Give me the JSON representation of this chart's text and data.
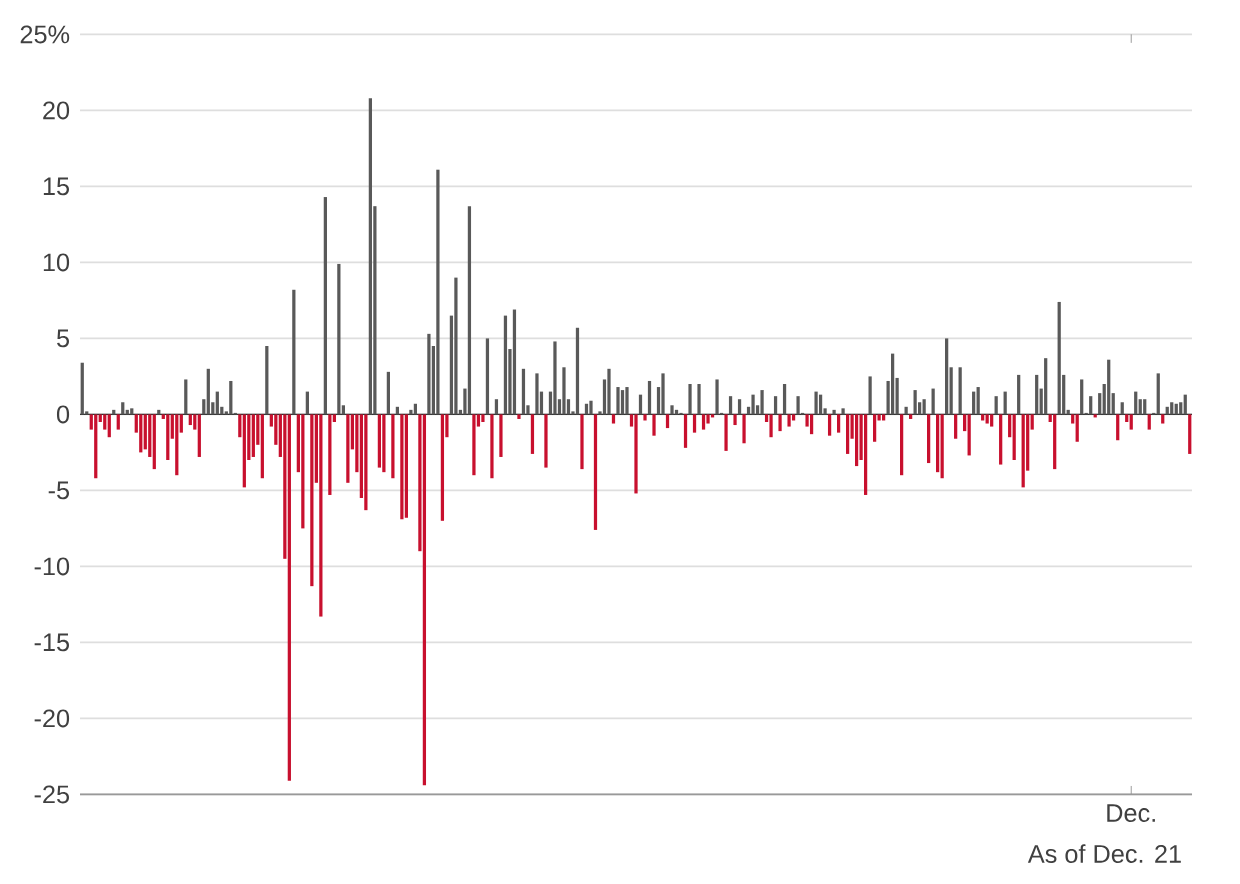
{
  "chart_data": {
    "type": "bar",
    "categories": [
      null,
      null,
      null,
      null,
      null,
      null,
      null,
      null,
      null,
      null,
      null,
      null,
      null,
      null,
      null,
      null,
      null,
      null,
      null,
      null,
      null,
      null,
      null,
      null,
      null,
      null,
      null,
      null,
      null,
      null,
      null,
      null,
      null,
      null,
      null,
      null,
      null,
      null,
      null,
      null,
      null,
      null,
      null,
      null,
      null,
      null,
      null,
      null,
      null,
      null,
      null,
      null,
      null,
      null,
      null,
      null,
      null,
      null,
      null,
      null,
      null,
      null,
      null,
      null,
      null,
      null,
      null,
      null,
      null,
      null,
      null,
      null,
      null,
      null,
      null,
      null,
      null,
      null,
      null,
      null,
      null,
      null,
      null,
      null,
      null,
      null,
      null,
      null,
      null,
      null,
      null,
      null,
      null,
      null,
      null,
      null,
      null,
      null,
      null,
      null,
      null,
      null,
      null,
      null,
      null,
      null,
      null,
      null,
      null,
      null,
      null,
      null,
      null,
      null,
      null,
      null,
      null,
      null,
      null,
      null,
      null,
      null,
      null,
      null,
      null,
      null,
      null,
      null,
      null,
      null,
      null,
      null,
      null,
      null,
      null,
      null,
      null,
      null,
      null,
      null,
      null,
      null,
      null,
      null,
      null,
      null,
      null,
      null,
      null,
      null,
      null,
      null,
      null,
      null,
      null,
      null,
      null,
      null,
      null,
      null,
      null,
      null,
      null,
      null,
      null,
      null,
      null,
      null,
      null,
      null,
      null,
      null,
      null,
      null,
      null,
      null,
      null,
      null,
      null,
      null,
      null,
      null,
      null,
      null,
      null,
      null,
      null,
      null,
      null,
      null,
      null,
      null,
      null,
      null,
      null,
      null,
      null,
      null,
      null,
      null,
      null,
      null,
      null,
      null,
      null,
      null,
      null,
      null,
      null,
      null,
      null,
      null,
      null,
      null,
      null,
      null,
      null,
      null,
      null,
      null,
      null,
      null,
      null,
      null,
      null,
      null,
      null,
      null,
      null,
      null,
      null,
      null,
      null,
      "Dec.",
      null,
      null,
      null,
      null,
      null,
      null,
      null,
      null,
      null,
      null,
      null,
      null,
      null
    ],
    "values": [
      3.4,
      0.2,
      -1.0,
      -4.2,
      -0.5,
      -1.0,
      -1.5,
      0.3,
      -1.0,
      0.8,
      0.3,
      0.4,
      -1.2,
      -2.5,
      -2.3,
      -2.8,
      -3.6,
      0.3,
      -0.3,
      -3.0,
      -1.6,
      -4.0,
      -1.2,
      2.3,
      -0.7,
      -1.0,
      -2.8,
      1.0,
      3.0,
      0.8,
      1.5,
      0.5,
      0.2,
      2.2,
      0.1,
      -1.5,
      -4.8,
      -3.0,
      -2.8,
      -2.0,
      -4.2,
      4.5,
      -0.8,
      -2.0,
      -2.8,
      -9.5,
      -24.1,
      8.2,
      -3.8,
      -7.5,
      1.5,
      -11.3,
      -4.5,
      -13.3,
      14.3,
      -5.3,
      -0.5,
      9.9,
      0.6,
      -4.5,
      -2.3,
      -3.8,
      -5.5,
      -6.3,
      20.8,
      13.7,
      -3.5,
      -3.8,
      2.8,
      -4.2,
      0.5,
      -6.9,
      -6.8,
      0.3,
      0.7,
      -9.0,
      -24.4,
      5.3,
      4.5,
      16.1,
      -7.0,
      -1.5,
      6.5,
      9.0,
      0.3,
      1.7,
      13.7,
      -4.0,
      -0.8,
      -0.5,
      5.0,
      -4.2,
      1.0,
      -2.8,
      6.5,
      4.3,
      6.9,
      -0.3,
      3.0,
      0.6,
      -2.6,
      2.7,
      1.5,
      -3.5,
      1.5,
      4.8,
      1.0,
      3.1,
      1.0,
      0.2,
      5.7,
      -3.6,
      0.7,
      0.9,
      -7.6,
      0.2,
      2.3,
      3.0,
      -0.6,
      1.8,
      1.6,
      1.8,
      -0.8,
      -5.2,
      1.3,
      -0.4,
      2.2,
      -1.4,
      1.8,
      2.7,
      -0.9,
      0.6,
      0.3,
      0.1,
      -2.2,
      2.0,
      -1.2,
      2.0,
      -1.0,
      -0.6,
      -0.2,
      2.3,
      0.1,
      -2.4,
      1.2,
      -0.7,
      1.0,
      -1.9,
      0.5,
      1.3,
      0.6,
      1.6,
      -0.5,
      -1.5,
      1.2,
      -1.1,
      2.0,
      -0.8,
      -0.4,
      1.2,
      0.1,
      -0.8,
      -1.3,
      1.5,
      1.3,
      0.4,
      -1.4,
      0.3,
      -1.2,
      0.4,
      -2.6,
      -1.6,
      -3.4,
      -3.0,
      -5.3,
      2.5,
      -1.8,
      -0.4,
      -0.4,
      2.2,
      4.0,
      2.4,
      -4.0,
      0.5,
      -0.3,
      1.6,
      0.8,
      1.0,
      -3.2,
      1.7,
      -3.8,
      -4.2,
      5.0,
      3.1,
      -1.6,
      3.1,
      -1.1,
      -2.7,
      1.5,
      1.8,
      -0.4,
      -0.6,
      -0.8,
      1.2,
      -3.3,
      1.5,
      -1.5,
      -3.0,
      2.6,
      -4.8,
      -3.7,
      -1.0,
      2.6,
      1.7,
      3.7,
      -0.5,
      -3.6,
      7.4,
      2.6,
      0.3,
      -0.6,
      -1.8,
      2.3,
      0.1,
      1.2,
      -0.2,
      1.4,
      2.0,
      3.6,
      1.4,
      -1.7,
      0.8,
      -0.5,
      -1.0,
      1.5,
      1.0,
      1.0,
      -1.0,
      0.1,
      2.7,
      -0.6,
      0.5,
      0.8,
      0.7,
      0.8,
      1.3,
      -2.6
    ],
    "colors": [
      "#595959",
      "#595959",
      "#c8102e",
      "#c8102e",
      "#c8102e",
      "#c8102e",
      "#c8102e",
      "#595959",
      "#c8102e",
      "#595959",
      "#595959",
      "#595959",
      "#c8102e",
      "#c8102e",
      "#c8102e",
      "#c8102e",
      "#c8102e",
      "#595959",
      "#c8102e",
      "#c8102e",
      "#c8102e",
      "#c8102e",
      "#c8102e",
      "#595959",
      "#c8102e",
      "#c8102e",
      "#c8102e",
      "#595959",
      "#595959",
      "#595959",
      "#595959",
      "#595959",
      "#595959",
      "#595959",
      "#595959",
      "#c8102e",
      "#c8102e",
      "#c8102e",
      "#c8102e",
      "#c8102e",
      "#c8102e",
      "#595959",
      "#c8102e",
      "#c8102e",
      "#c8102e",
      "#c8102e",
      "#c8102e",
      "#595959",
      "#c8102e",
      "#c8102e",
      "#595959",
      "#c8102e",
      "#c8102e",
      "#c8102e",
      "#595959",
      "#c8102e",
      "#c8102e",
      "#595959",
      "#595959",
      "#c8102e",
      "#c8102e",
      "#c8102e",
      "#c8102e",
      "#c8102e",
      "#595959",
      "#595959",
      "#c8102e",
      "#c8102e",
      "#595959",
      "#c8102e",
      "#595959",
      "#c8102e",
      "#c8102e",
      "#595959",
      "#595959",
      "#c8102e",
      "#c8102e",
      "#595959",
      "#595959",
      "#595959",
      "#c8102e",
      "#c8102e",
      "#595959",
      "#595959",
      "#595959",
      "#595959",
      "#595959",
      "#c8102e",
      "#c8102e",
      "#c8102e",
      "#595959",
      "#c8102e",
      "#595959",
      "#c8102e",
      "#595959",
      "#595959",
      "#595959",
      "#c8102e",
      "#595959",
      "#595959",
      "#c8102e",
      "#595959",
      "#595959",
      "#c8102e",
      "#595959",
      "#595959",
      "#595959",
      "#595959",
      "#595959",
      "#595959",
      "#595959",
      "#c8102e",
      "#595959",
      "#595959",
      "#c8102e",
      "#595959",
      "#595959",
      "#595959",
      "#c8102e",
      "#595959",
      "#595959",
      "#595959",
      "#c8102e",
      "#c8102e",
      "#595959",
      "#c8102e",
      "#595959",
      "#c8102e",
      "#595959",
      "#595959",
      "#c8102e",
      "#595959",
      "#595959",
      "#595959",
      "#c8102e",
      "#595959",
      "#c8102e",
      "#595959",
      "#c8102e",
      "#c8102e",
      "#c8102e",
      "#595959",
      "#595959",
      "#c8102e",
      "#595959",
      "#c8102e",
      "#595959",
      "#c8102e",
      "#595959",
      "#595959",
      "#595959",
      "#595959",
      "#c8102e",
      "#c8102e",
      "#595959",
      "#c8102e",
      "#595959",
      "#c8102e",
      "#c8102e",
      "#595959",
      "#595959",
      "#c8102e",
      "#c8102e",
      "#595959",
      "#595959",
      "#595959",
      "#c8102e",
      "#595959",
      "#c8102e",
      "#595959",
      "#c8102e",
      "#c8102e",
      "#c8102e",
      "#c8102e",
      "#c8102e",
      "#595959",
      "#c8102e",
      "#c8102e",
      "#c8102e",
      "#595959",
      "#595959",
      "#595959",
      "#c8102e",
      "#595959",
      "#c8102e",
      "#595959",
      "#595959",
      "#595959",
      "#c8102e",
      "#595959",
      "#c8102e",
      "#c8102e",
      "#595959",
      "#595959",
      "#c8102e",
      "#595959",
      "#c8102e",
      "#c8102e",
      "#595959",
      "#595959",
      "#c8102e",
      "#c8102e",
      "#c8102e",
      "#595959",
      "#c8102e",
      "#595959",
      "#c8102e",
      "#c8102e",
      "#595959",
      "#c8102e",
      "#c8102e",
      "#c8102e",
      "#595959",
      "#595959",
      "#595959",
      "#c8102e",
      "#c8102e",
      "#595959",
      "#595959",
      "#595959",
      "#c8102e",
      "#c8102e",
      "#595959",
      "#595959",
      "#595959",
      "#c8102e",
      "#595959",
      "#595959",
      "#595959",
      "#595959",
      "#c8102e",
      "#595959",
      "#c8102e",
      "#c8102e",
      "#595959",
      "#595959",
      "#595959",
      "#c8102e",
      "#595959",
      "#595959",
      "#c8102e",
      "#595959",
      "#595959",
      "#595959",
      "#595959",
      "#595959",
      "#c8102e"
    ],
    "ylim": [
      -25,
      25
    ],
    "yticks": [
      -25,
      -20,
      -15,
      -10,
      -5,
      0,
      5,
      10,
      15,
      20,
      {
        "value": 25,
        "label": "25%"
      }
    ],
    "grid": "y",
    "annotations": [
      "As of Dec. 21"
    ]
  }
}
